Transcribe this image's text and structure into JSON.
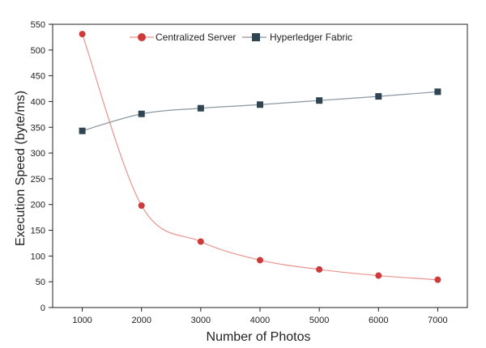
{
  "chart_data": {
    "type": "line",
    "xlabel": "Number of Photos",
    "ylabel": "Execution Speed  (byte/ms)",
    "x": [
      1000,
      2000,
      3000,
      4000,
      5000,
      6000,
      7000
    ],
    "xticks": [
      1000,
      2000,
      3000,
      4000,
      5000,
      6000,
      7000
    ],
    "yticks": [
      0,
      50,
      100,
      150,
      200,
      250,
      300,
      350,
      400,
      450,
      500,
      550
    ],
    "xlim": [
      500,
      7500
    ],
    "ylim": [
      0,
      550
    ],
    "grid": false,
    "legend_position": "top",
    "series": [
      {
        "name": "Centralized Server",
        "values": [
          531,
          198,
          128,
          92,
          74,
          62,
          54
        ],
        "color": "#cc3a3a",
        "line_color": "#e8948e",
        "marker": "circle"
      },
      {
        "name": "Hyperledger Fabric",
        "values": [
          343,
          376,
          387,
          394,
          402,
          410,
          419
        ],
        "color": "#2f4552",
        "line_color": "#8b96a0",
        "marker": "square"
      }
    ]
  }
}
